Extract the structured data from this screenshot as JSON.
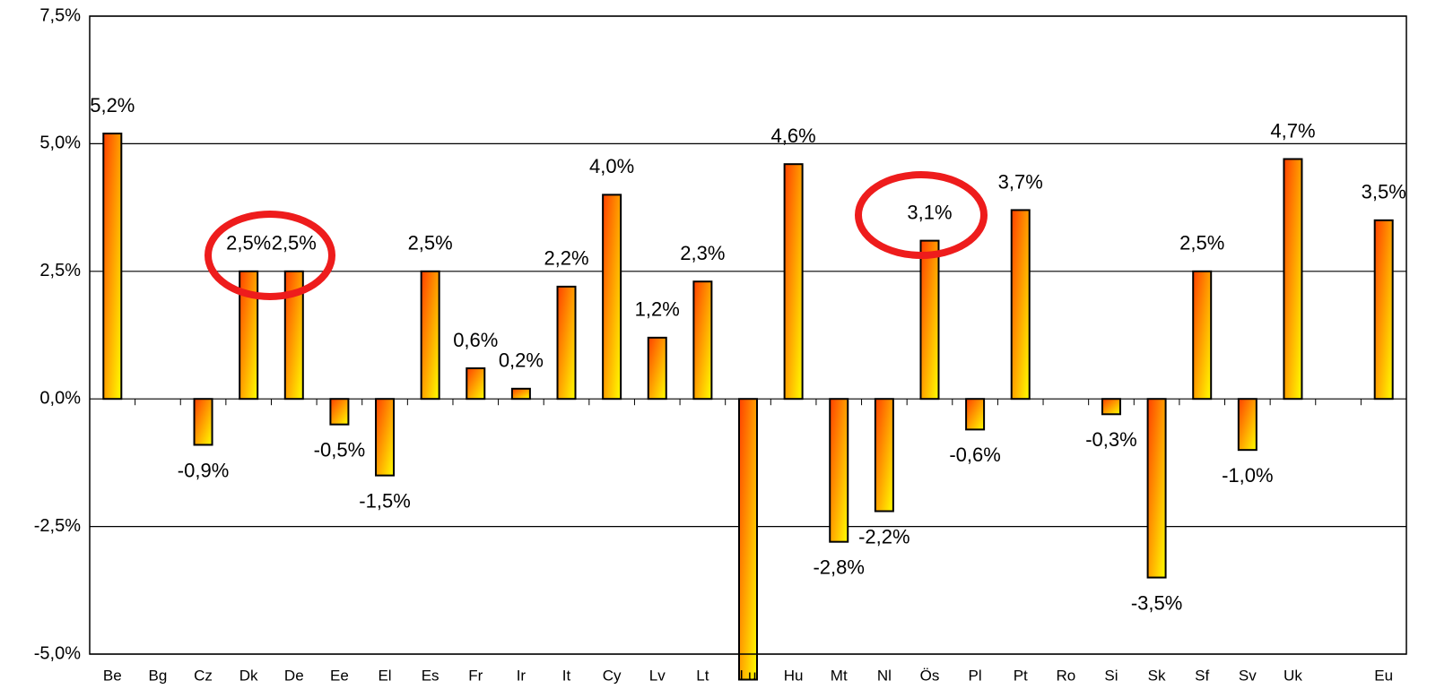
{
  "chart_data": {
    "type": "bar",
    "categories": [
      "Be",
      "Bg",
      "Cz",
      "Dk",
      "De",
      "Ee",
      "El",
      "Es",
      "Fr",
      "Ir",
      "It",
      "Cy",
      "Lv",
      "Lt",
      "Lu",
      "Hu",
      "Mt",
      "Nl",
      "Ös",
      "Pl",
      "Pt",
      "Ro",
      "Si",
      "Sk",
      "Sf",
      "Sv",
      "Uk",
      null,
      "Eu"
    ],
    "values": [
      5.2,
      null,
      -0.9,
      2.5,
      2.5,
      -0.5,
      -1.5,
      2.5,
      0.6,
      0.2,
      2.2,
      4.0,
      1.2,
      2.3,
      -5.5,
      4.6,
      -2.8,
      -2.2,
      3.1,
      -0.6,
      3.7,
      null,
      -0.3,
      -3.5,
      2.5,
      -1.0,
      4.7,
      null,
      3.5
    ],
    "value_labels": [
      "5,2%",
      null,
      "-0,9%",
      "2,5%",
      "2,5%",
      "-0,5%",
      "-1,5%",
      "2,5%",
      "0,6%",
      "0,2%",
      "2,2%",
      "4,0%",
      "1,2%",
      "2,3%",
      null,
      "4,6%",
      "-2,8%",
      "-2,2%",
      "3,1%",
      "-0,6%",
      "3,7%",
      null,
      "-0,3%",
      "-3,5%",
      "2,5%",
      "-1,0%",
      "4,7%",
      null,
      "3,5%"
    ],
    "color": [
      "#ff4000",
      "#ffff00"
    ],
    "ylim": [
      -5,
      7.5
    ],
    "yticks": [
      {
        "value": -5,
        "label": "-5,0%"
      },
      {
        "value": -2.5,
        "label": "-2,5%"
      },
      {
        "value": 0,
        "label": "0,0%"
      },
      {
        "value": 2.5,
        "label": "2,5%"
      },
      {
        "value": 5,
        "label": "5,0%"
      },
      {
        "value": 7.5,
        "label": "7,5%"
      }
    ],
    "grid": true
  }
}
